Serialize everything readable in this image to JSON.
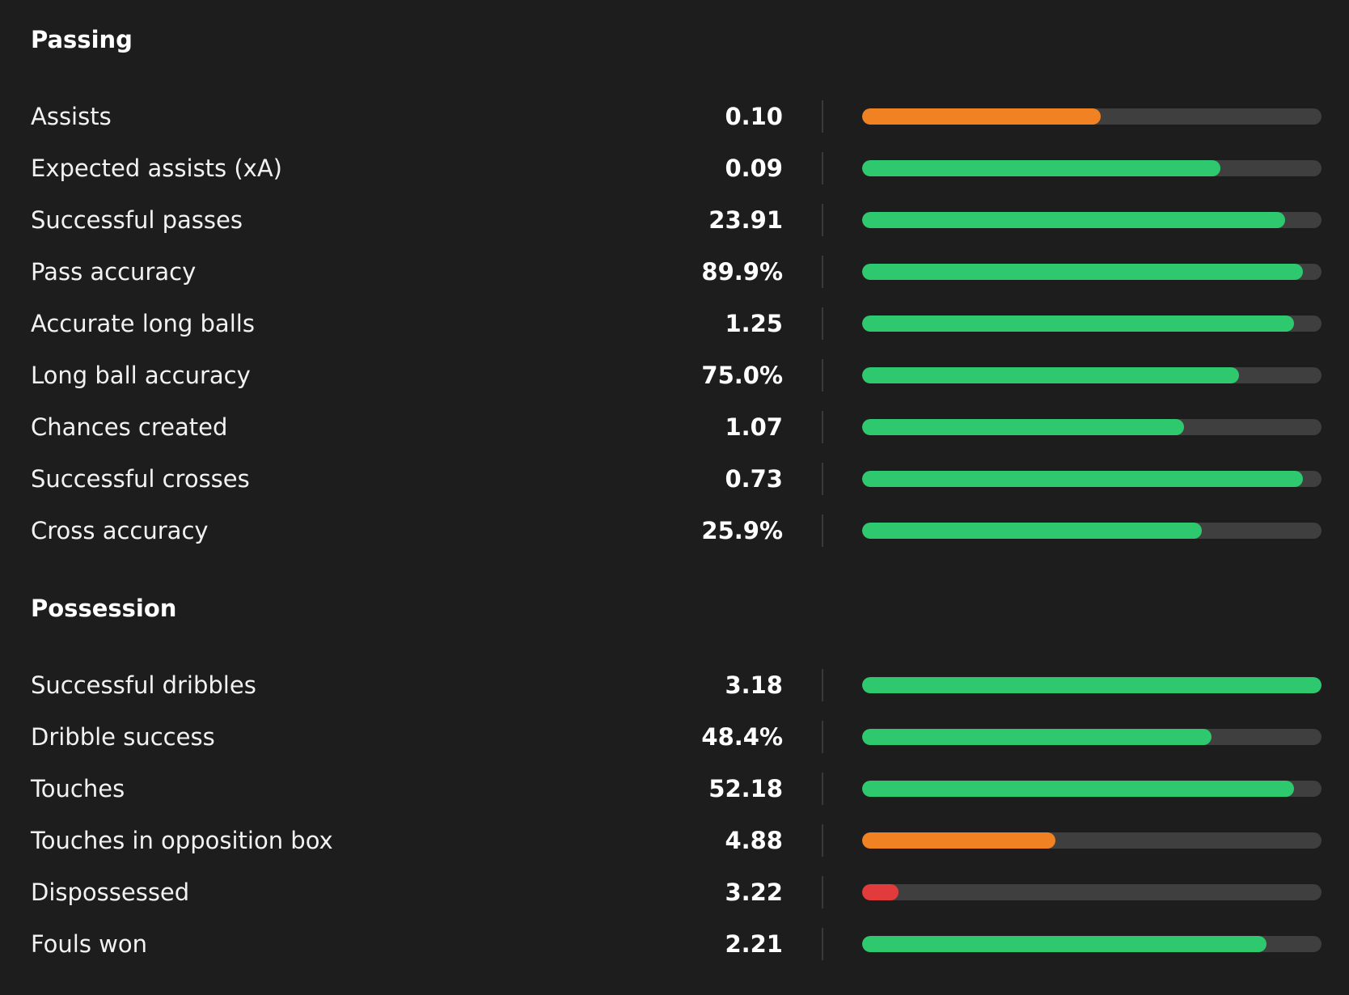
{
  "colors": {
    "background": "#1d1d1d",
    "track": "#3f3f3f",
    "good": "#2ec86e",
    "average": "#f08223",
    "poor": "#e23b3b"
  },
  "sections": [
    {
      "title": "Passing",
      "stats": [
        {
          "label": "Assists",
          "value": "0.10",
          "level": 0.52,
          "rating": "average"
        },
        {
          "label": "Expected assists (xA)",
          "value": "0.09",
          "level": 0.78,
          "rating": "good"
        },
        {
          "label": "Successful passes",
          "value": "23.91",
          "level": 0.92,
          "rating": "good"
        },
        {
          "label": "Pass accuracy",
          "value": "89.9%",
          "level": 0.96,
          "rating": "good"
        },
        {
          "label": "Accurate long balls",
          "value": "1.25",
          "level": 0.94,
          "rating": "good"
        },
        {
          "label": "Long ball accuracy",
          "value": "75.0%",
          "level": 0.82,
          "rating": "good"
        },
        {
          "label": "Chances created",
          "value": "1.07",
          "level": 0.7,
          "rating": "good"
        },
        {
          "label": "Successful crosses",
          "value": "0.73",
          "level": 0.96,
          "rating": "good"
        },
        {
          "label": "Cross accuracy",
          "value": "25.9%",
          "level": 0.74,
          "rating": "good"
        }
      ]
    },
    {
      "title": "Possession",
      "stats": [
        {
          "label": "Successful dribbles",
          "value": "3.18",
          "level": 1.0,
          "rating": "good"
        },
        {
          "label": "Dribble success",
          "value": "48.4%",
          "level": 0.76,
          "rating": "good"
        },
        {
          "label": "Touches",
          "value": "52.18",
          "level": 0.94,
          "rating": "good"
        },
        {
          "label": "Touches in opposition box",
          "value": "4.88",
          "level": 0.42,
          "rating": "average"
        },
        {
          "label": "Dispossessed",
          "value": "3.22",
          "level": 0.08,
          "rating": "poor"
        },
        {
          "label": "Fouls won",
          "value": "2.21",
          "level": 0.88,
          "rating": "good"
        }
      ]
    }
  ]
}
